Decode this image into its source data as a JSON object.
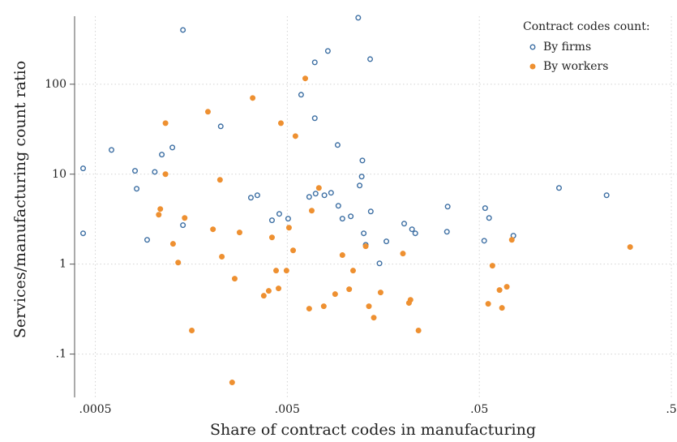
{
  "chart_data": {
    "type": "scatter",
    "x_label": "Share of contract codes in manufacturing",
    "y_label": "Services/manufacturing count ratio",
    "x_log": true,
    "y_log": true,
    "grid": true,
    "legend_position": "top-right",
    "legend_title": "Contract codes count:",
    "xlim": [
      0.00039,
      0.535
    ],
    "ylim": [
      0.033,
      570
    ],
    "xticks": [
      {
        "value": 0.0005,
        "label": ".0005"
      },
      {
        "value": 0.005,
        "label": ".005"
      },
      {
        "value": 0.05,
        "label": ".05"
      },
      {
        "value": 0.5,
        "label": ".5"
      }
    ],
    "yticks": [
      {
        "value": 0.1,
        "label": ".1"
      },
      1,
      10,
      100
    ],
    "series": [
      {
        "name": "By firms",
        "color": "#3d6fa3",
        "filled": false,
        "x": [
          0.000432,
          0.000432,
          0.000607,
          0.000805,
          0.000821,
          0.000931,
          0.00102,
          0.00111,
          0.00126,
          0.00143,
          0.00143,
          0.00225,
          0.00323,
          0.00349,
          0.00416,
          0.00454,
          0.00505,
          0.0059,
          0.0065,
          0.00695,
          0.00695,
          0.00702,
          0.0078,
          0.00813,
          0.00845,
          0.00914,
          0.00922,
          0.00968,
          0.0107,
          0.0117,
          0.0119,
          0.0122,
          0.0123,
          0.0125,
          0.0128,
          0.0135,
          0.0136,
          0.0151,
          0.0164,
          0.0203,
          0.0223,
          0.0232,
          0.0339,
          0.0342,
          0.053,
          0.0536,
          0.0562,
          0.0752,
          0.13,
          0.23
        ],
        "values": [
          11.6,
          2.2,
          18.6,
          10.9,
          6.88,
          1.86,
          10.6,
          16.5,
          19.8,
          401,
          2.71,
          34,
          5.48,
          5.83,
          3.07,
          3.62,
          3.2,
          76.4,
          5.59,
          175,
          41.9,
          6.08,
          5.83,
          234,
          6.21,
          21.1,
          4.45,
          3.2,
          3.4,
          548,
          7.48,
          9.4,
          14.2,
          2.2,
          1.64,
          190,
          3.85,
          1.02,
          1.79,
          2.82,
          2.44,
          2.2,
          2.29,
          4.36,
          1.82,
          4.19,
          3.26,
          2.07,
          7.03,
          5.83
        ]
      },
      {
        "name": "By workers",
        "color": "#ee9031",
        "filled": true,
        "x": [
          0.00107,
          0.00109,
          0.00116,
          0.00116,
          0.00127,
          0.00135,
          0.00146,
          0.00159,
          0.00193,
          0.00205,
          0.00223,
          0.00228,
          0.00258,
          0.00266,
          0.00282,
          0.0033,
          0.00377,
          0.004,
          0.00416,
          0.00437,
          0.0045,
          0.00463,
          0.00495,
          0.0051,
          0.00536,
          0.00551,
          0.0062,
          0.0065,
          0.0067,
          0.0073,
          0.00774,
          0.00887,
          0.00968,
          0.0105,
          0.011,
          0.0128,
          0.0133,
          0.0141,
          0.0153,
          0.02,
          0.0215,
          0.0219,
          0.0241,
          0.0556,
          0.0585,
          0.0637,
          0.0656,
          0.0695,
          0.0738,
          0.305
        ],
        "values": [
          3.54,
          4.1,
          36.9,
          10,
          1.68,
          1.04,
          3.26,
          0.183,
          49.4,
          2.44,
          8.65,
          1.21,
          0.0484,
          0.689,
          2.25,
          70.3,
          0.445,
          0.504,
          1.98,
          0.847,
          0.537,
          36.9,
          0.847,
          2.54,
          1.42,
          26.5,
          116,
          0.32,
          3.93,
          7.03,
          0.34,
          0.464,
          1.26,
          0.526,
          0.847,
          1.58,
          0.34,
          0.254,
          0.484,
          1.31,
          0.37,
          0.401,
          0.183,
          0.362,
          0.96,
          0.515,
          0.326,
          0.56,
          1.86,
          1.55
        ]
      }
    ]
  }
}
